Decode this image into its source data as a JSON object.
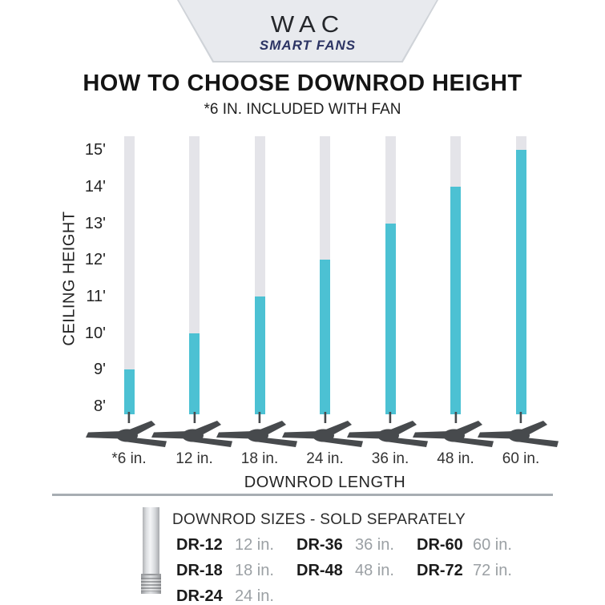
{
  "logo": {
    "brand": "WAC",
    "tagline": "SMART FANS"
  },
  "header": {
    "title": "HOW TO CHOOSE DOWNROD HEIGHT",
    "subtitle": "*6 IN. INCLUDED WITH FAN"
  },
  "chart_data": {
    "type": "bar",
    "title": "HOW TO CHOOSE DOWNROD HEIGHT",
    "note": "*6 IN. INCLUDED WITH FAN",
    "xlabel": "DOWNROD LENGTH",
    "ylabel": "CEILING HEIGHT",
    "categories": [
      "*6 in.",
      "12 in.",
      "18 in.",
      "24 in.",
      "36 in.",
      "48 in.",
      "60 in."
    ],
    "values": [
      9,
      10,
      11,
      12,
      13,
      14,
      15
    ],
    "yticks": [
      "15'",
      "14'",
      "13'",
      "12'",
      "11'",
      "10'",
      "9'",
      "8'"
    ],
    "ylim": [
      8,
      15
    ],
    "grid": false,
    "legend": null,
    "colors": {
      "recommended_fill": "#4cc1d3",
      "rod_track": "#e4e4e9",
      "fan_silhouette": "#474a4d"
    }
  },
  "icons": {
    "ceiling_fan": "three-blade ceiling fan silhouette",
    "downrod": "metal downrod photo"
  },
  "footer": {
    "heading": "DOWNROD SIZES - SOLD SEPARATELY",
    "columns": [
      [
        {
          "model": "DR-12",
          "size": "12 in."
        },
        {
          "model": "DR-18",
          "size": "18 in."
        },
        {
          "model": "DR-24",
          "size": "24 in."
        }
      ],
      [
        {
          "model": "DR-36",
          "size": "36 in."
        },
        {
          "model": "DR-48",
          "size": "48 in."
        }
      ],
      [
        {
          "model": "DR-60",
          "size": "60 in."
        },
        {
          "model": "DR-72",
          "size": "72 in."
        }
      ]
    ]
  }
}
